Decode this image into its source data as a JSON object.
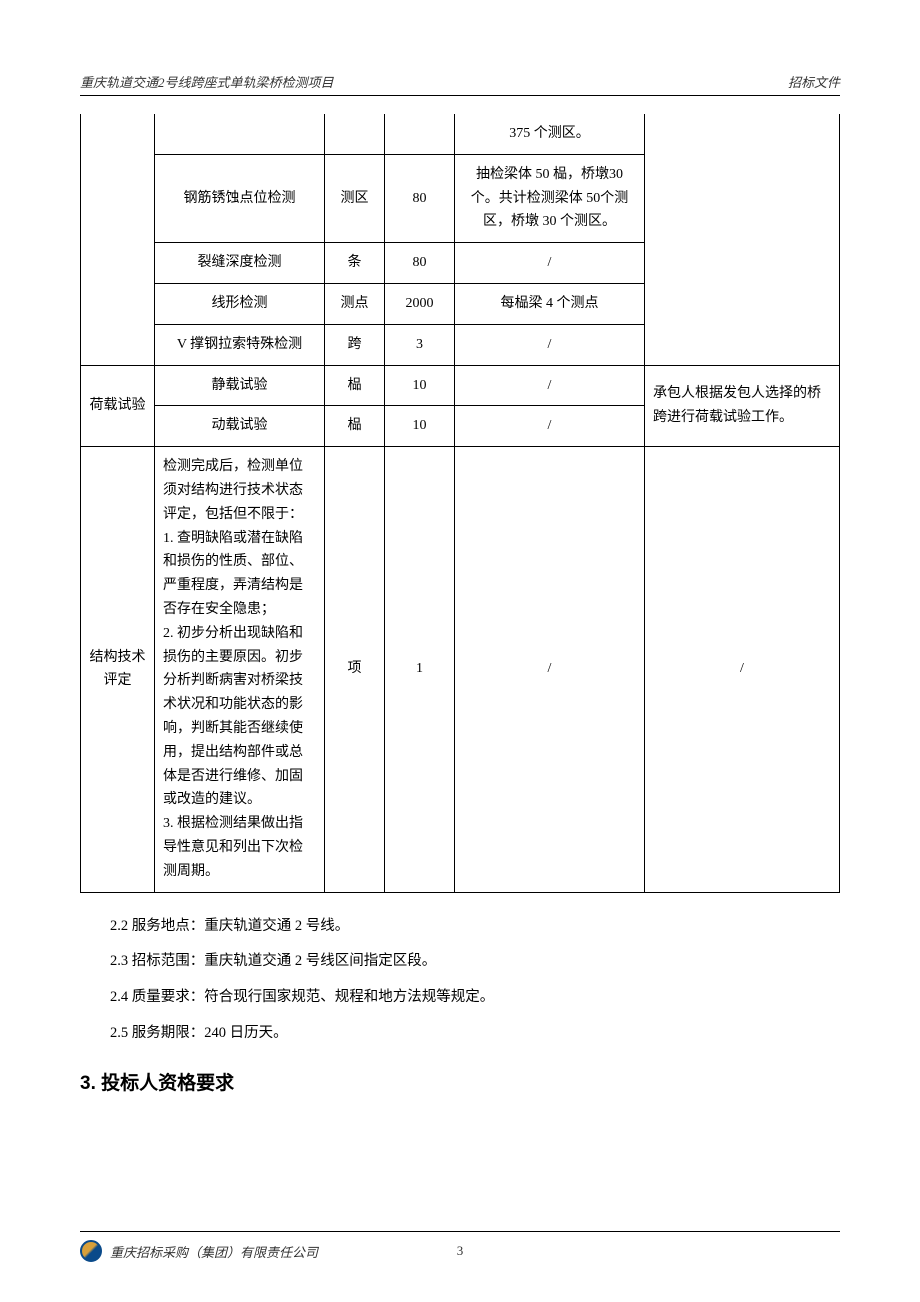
{
  "header": {
    "left": "重庆轨道交通2号线跨座式单轨梁桥检测项目",
    "right": "招标文件"
  },
  "table": {
    "rows": [
      {
        "c1": "",
        "c2": "",
        "c3": "",
        "c4": "",
        "c5": "375 个测区。",
        "c6": "",
        "c1_rowspan": 5,
        "c1_hidden_top": true,
        "c6_rowspan": 5,
        "c6_hidden_top": true
      },
      {
        "c2": "钢筋锈蚀点位检测",
        "c3": "测区",
        "c4": "80",
        "c5": "抽检梁体 50 榀，桥墩30 个。共计检测梁体 50个测区，桥墩 30 个测区。"
      },
      {
        "c2": "裂缝深度检测",
        "c3": "条",
        "c4": "80",
        "c5": "/"
      },
      {
        "c2": "线形检测",
        "c3": "测点",
        "c4": "2000",
        "c5": "每榀梁 4 个测点"
      },
      {
        "c2": "V 撑钢拉索特殊检测",
        "c3": "跨",
        "c4": "3",
        "c5": "/"
      },
      {
        "c1": "荷载试验",
        "c1_rowspan": 2,
        "c2": "静载试验",
        "c3": "榀",
        "c4": "10",
        "c5": "/",
        "c6": "承包人根据发包人选择的桥跨进行荷载试验工作。",
        "c6_rowspan": 2
      },
      {
        "c2": "动载试验",
        "c3": "榀",
        "c4": "10",
        "c5": "/"
      },
      {
        "c1": "结构技术评定",
        "c2": "检测完成后，检测单位须对结构进行技术状态评定，包括但不限于：\n1. 查明缺陷或潜在缺陷和损伤的性质、部位、严重程度，弄清结构是否存在安全隐患；\n2. 初步分析出现缺陷和损伤的主要原因。初步分析判断病害对桥梁技术状况和功能状态的影响，判断其能否继续使用，提出结构部件或总体是否进行维修、加固或改造的建议。\n3. 根据检测结果做出指导性意见和列出下次检测周期。",
        "c2_left": true,
        "c3": "项",
        "c4": "1",
        "c5": "/",
        "c6": "/"
      }
    ]
  },
  "paragraphs": [
    "2.2 服务地点：重庆轨道交通 2 号线。",
    "2.3 招标范围：重庆轨道交通 2 号线区间指定区段。",
    "2.4 质量要求：符合现行国家规范、规程和地方法规等规定。",
    "2.5 服务期限：240 日历天。"
  ],
  "section_heading": "3.  投标人资格要求",
  "footer": {
    "company": "重庆招标采购（集团）有限责任公司",
    "page": "3"
  }
}
